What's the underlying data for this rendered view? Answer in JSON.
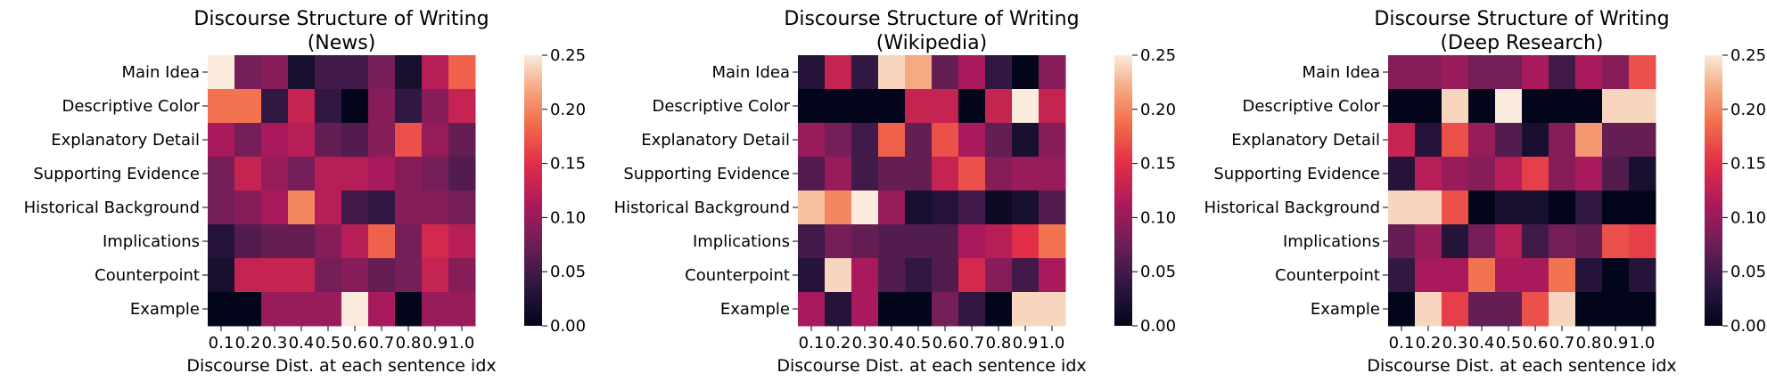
{
  "chart_data": [
    {
      "type": "heatmap",
      "title": "Discourse Structure of Writing",
      "subtitle": "(News)",
      "xlabel": "Discourse Dist. at each sentence idx",
      "ylabel": "",
      "x_categories": [
        "0.1",
        "0.2",
        "0.3",
        "0.4",
        "0.5",
        "0.6",
        "0.7",
        "0.8",
        "0.9",
        "1.0"
      ],
      "y_categories": [
        "Main Idea",
        "Descriptive Color",
        "Explanatory Detail",
        "Supporting Evidence",
        "Historical Background",
        "Implications",
        "Counterpoint",
        "Example"
      ],
      "colorbar": {
        "range": [
          0,
          0.25
        ],
        "ticks": [
          "0.00",
          "0.05",
          "0.10",
          "0.15",
          "0.20",
          "0.25"
        ],
        "colormap": "rocket"
      },
      "values": [
        [
          0.25,
          0.08,
          0.09,
          0.02,
          0.05,
          0.05,
          0.08,
          0.02,
          0.12,
          0.18
        ],
        [
          0.19,
          0.19,
          0.04,
          0.13,
          0.04,
          0.0,
          0.09,
          0.04,
          0.09,
          0.13
        ],
        [
          0.11,
          0.08,
          0.11,
          0.12,
          0.07,
          0.06,
          0.09,
          0.17,
          0.1,
          0.07
        ],
        [
          0.08,
          0.13,
          0.1,
          0.08,
          0.12,
          0.12,
          0.11,
          0.09,
          0.08,
          0.06
        ],
        [
          0.08,
          0.09,
          0.11,
          0.2,
          0.12,
          0.05,
          0.04,
          0.09,
          0.09,
          0.08
        ],
        [
          0.03,
          0.06,
          0.07,
          0.07,
          0.09,
          0.12,
          0.18,
          0.08,
          0.14,
          0.12
        ],
        [
          0.02,
          0.13,
          0.13,
          0.13,
          0.08,
          0.09,
          0.07,
          0.08,
          0.13,
          0.09
        ],
        [
          0.0,
          0.0,
          0.1,
          0.1,
          0.1,
          0.25,
          0.11,
          0.0,
          0.1,
          0.1
        ]
      ]
    },
    {
      "type": "heatmap",
      "title": "Discourse Structure of Writing",
      "subtitle": "(Wikipedia)",
      "xlabel": "Discourse Dist. at each sentence idx",
      "ylabel": "",
      "x_categories": [
        "0.1",
        "0.2",
        "0.3",
        "0.4",
        "0.5",
        "0.6",
        "0.7",
        "0.8",
        "0.9",
        "1.0"
      ],
      "y_categories": [
        "Main Idea",
        "Descriptive Color",
        "Explanatory Detail",
        "Supporting Evidence",
        "Historical Background",
        "Implications",
        "Counterpoint",
        "Example"
      ],
      "colorbar": {
        "range": [
          0,
          0.25
        ],
        "ticks": [
          "0.00",
          "0.05",
          "0.10",
          "0.15",
          "0.20",
          "0.25"
        ],
        "colormap": "rocket"
      },
      "values": [
        [
          0.03,
          0.13,
          0.04,
          0.24,
          0.22,
          0.07,
          0.11,
          0.04,
          0.0,
          0.09
        ],
        [
          0.0,
          0.0,
          0.0,
          0.0,
          0.13,
          0.13,
          0.0,
          0.13,
          0.25,
          0.13
        ],
        [
          0.1,
          0.08,
          0.05,
          0.18,
          0.07,
          0.17,
          0.11,
          0.07,
          0.02,
          0.09
        ],
        [
          0.06,
          0.1,
          0.05,
          0.07,
          0.07,
          0.13,
          0.17,
          0.09,
          0.1,
          0.1
        ],
        [
          0.23,
          0.2,
          0.25,
          0.1,
          0.02,
          0.03,
          0.05,
          0.01,
          0.02,
          0.06
        ],
        [
          0.05,
          0.08,
          0.07,
          0.06,
          0.06,
          0.06,
          0.11,
          0.12,
          0.15,
          0.19
        ],
        [
          0.03,
          0.24,
          0.11,
          0.06,
          0.04,
          0.06,
          0.14,
          0.09,
          0.05,
          0.11
        ],
        [
          0.11,
          0.03,
          0.11,
          0.0,
          0.0,
          0.08,
          0.04,
          0.0,
          0.24,
          0.24
        ]
      ]
    },
    {
      "type": "heatmap",
      "title": "Discourse Structure of Writing",
      "subtitle": "(Deep Research)",
      "xlabel": "Discourse Dist. at each sentence idx",
      "ylabel": "",
      "x_categories": [
        "0.1",
        "0.2",
        "0.3",
        "0.4",
        "0.5",
        "0.6",
        "0.7",
        "0.8",
        "0.9",
        "1.0"
      ],
      "y_categories": [
        "Main Idea",
        "Descriptive Color",
        "Explanatory Detail",
        "Supporting Evidence",
        "Historical Background",
        "Implications",
        "Counterpoint",
        "Example"
      ],
      "colorbar": {
        "range": [
          0,
          0.25
        ],
        "ticks": [
          "0.00",
          "0.05",
          "0.10",
          "0.15",
          "0.20",
          "0.25"
        ],
        "colormap": "rocket"
      },
      "values": [
        [
          0.09,
          0.09,
          0.1,
          0.08,
          0.08,
          0.11,
          0.05,
          0.11,
          0.09,
          0.17
        ],
        [
          0.0,
          0.0,
          0.24,
          0.0,
          0.25,
          0.0,
          0.0,
          0.0,
          0.24,
          0.24
        ],
        [
          0.13,
          0.03,
          0.17,
          0.1,
          0.06,
          0.02,
          0.09,
          0.21,
          0.07,
          0.07
        ],
        [
          0.03,
          0.12,
          0.1,
          0.09,
          0.12,
          0.16,
          0.09,
          0.11,
          0.06,
          0.02
        ],
        [
          0.24,
          0.24,
          0.17,
          0.0,
          0.02,
          0.02,
          0.0,
          0.04,
          0.0,
          0.0
        ],
        [
          0.07,
          0.1,
          0.03,
          0.08,
          0.12,
          0.05,
          0.08,
          0.07,
          0.17,
          0.16
        ],
        [
          0.04,
          0.11,
          0.11,
          0.19,
          0.11,
          0.11,
          0.19,
          0.03,
          0.0,
          0.03
        ],
        [
          0.0,
          0.24,
          0.16,
          0.07,
          0.07,
          0.17,
          0.24,
          0.0,
          0.0,
          0.0
        ]
      ]
    }
  ]
}
